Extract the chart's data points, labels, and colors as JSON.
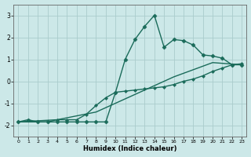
{
  "xlabel": "Humidex (Indice chaleur)",
  "bg_color": "#cce8e8",
  "grid_color": "#aacccc",
  "line_color": "#1a6b5a",
  "xlim": [
    -0.5,
    23.5
  ],
  "ylim": [
    -2.5,
    3.5
  ],
  "xticks": [
    0,
    1,
    2,
    3,
    4,
    5,
    6,
    7,
    8,
    9,
    10,
    11,
    12,
    13,
    14,
    15,
    16,
    17,
    18,
    19,
    20,
    21,
    22,
    23
  ],
  "yticks": [
    -2,
    -1,
    0,
    1,
    2,
    3
  ],
  "series": [
    {
      "x": [
        0,
        4,
        8,
        12,
        16,
        20,
        23
      ],
      "y": [
        -1.85,
        -1.75,
        -1.4,
        -0.6,
        0.2,
        0.85,
        0.75
      ],
      "marker": null,
      "linewidth": 1.0
    },
    {
      "x": [
        0,
        2,
        3,
        4,
        5,
        6,
        7,
        8,
        9,
        10,
        11,
        12,
        13,
        14,
        15,
        16,
        17,
        18,
        19,
        20,
        21,
        22,
        23
      ],
      "y": [
        -1.85,
        -1.85,
        -1.85,
        -1.75,
        -1.75,
        -1.75,
        -1.5,
        -1.1,
        -0.75,
        -0.5,
        -0.45,
        -0.4,
        -0.35,
        -0.3,
        -0.25,
        -0.15,
        0.0,
        0.1,
        0.25,
        0.45,
        0.6,
        0.75,
        0.8
      ],
      "marker": "D",
      "markersize": 2.0,
      "linewidth": 1.0
    },
    {
      "x": [
        0,
        1,
        2,
        3,
        4,
        5,
        6,
        7,
        8,
        9,
        10,
        11,
        12,
        13,
        14,
        15,
        16,
        17,
        18,
        19,
        20,
        21,
        22,
        23
      ],
      "y": [
        -1.85,
        -1.75,
        -1.85,
        -1.85,
        -1.85,
        -1.85,
        -1.85,
        -1.85,
        -1.85,
        -1.85,
        -0.5,
        1.0,
        1.9,
        2.5,
        3.0,
        1.55,
        1.9,
        1.85,
        1.65,
        1.2,
        1.15,
        1.05,
        0.75,
        0.75
      ],
      "marker": "D",
      "markersize": 2.5,
      "linewidth": 1.0
    }
  ]
}
